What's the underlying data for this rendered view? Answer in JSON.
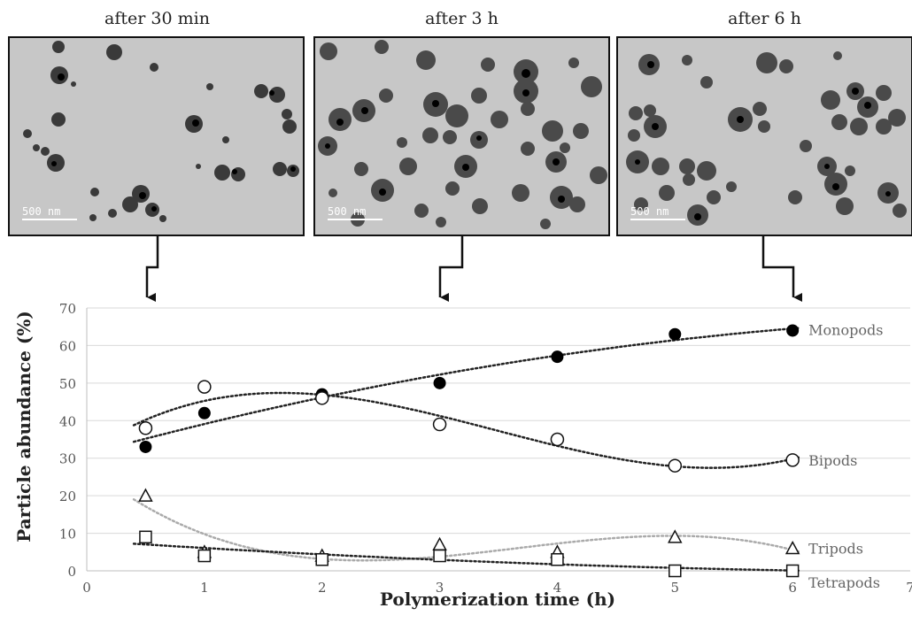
{
  "panels": [
    {
      "title": "after 30 min",
      "scale": "500 nm"
    },
    {
      "title": "after 3 h",
      "scale": "500 nm"
    },
    {
      "title": "after 6 h",
      "scale": "500 nm"
    }
  ],
  "chart_data": {
    "type": "scatter",
    "xlabel": "Polymerization time (h)",
    "ylabel": "Particle abundance (%)",
    "xlim": [
      0,
      7
    ],
    "ylim": [
      0,
      70
    ],
    "xticks": [
      0,
      1,
      2,
      3,
      4,
      5,
      6,
      7
    ],
    "yticks": [
      0,
      10,
      20,
      30,
      40,
      50,
      60,
      70
    ],
    "grid": "horizontal",
    "legend": "labels at right end of each series",
    "series": [
      {
        "name": "Monopods",
        "marker": "filled-circle",
        "x": [
          0.5,
          1,
          2,
          3,
          4,
          5,
          6
        ],
        "y": [
          33,
          42,
          47,
          50,
          57,
          63,
          64
        ]
      },
      {
        "name": "Bipods",
        "marker": "open-circle",
        "x": [
          0.5,
          1,
          2,
          3,
          4,
          5,
          6
        ],
        "y": [
          38,
          49,
          46,
          39,
          35,
          28,
          29.5
        ]
      },
      {
        "name": "Tripods",
        "marker": "open-triangle",
        "x": [
          0.5,
          1,
          2,
          3,
          4,
          5,
          6
        ],
        "y": [
          20,
          5,
          4,
          7,
          5,
          9,
          6
        ]
      },
      {
        "name": "Tetrapods",
        "marker": "open-square",
        "x": [
          0.5,
          1,
          2,
          3,
          4,
          5,
          6
        ],
        "y": [
          9,
          4,
          3,
          4,
          3,
          0,
          0
        ]
      }
    ]
  }
}
